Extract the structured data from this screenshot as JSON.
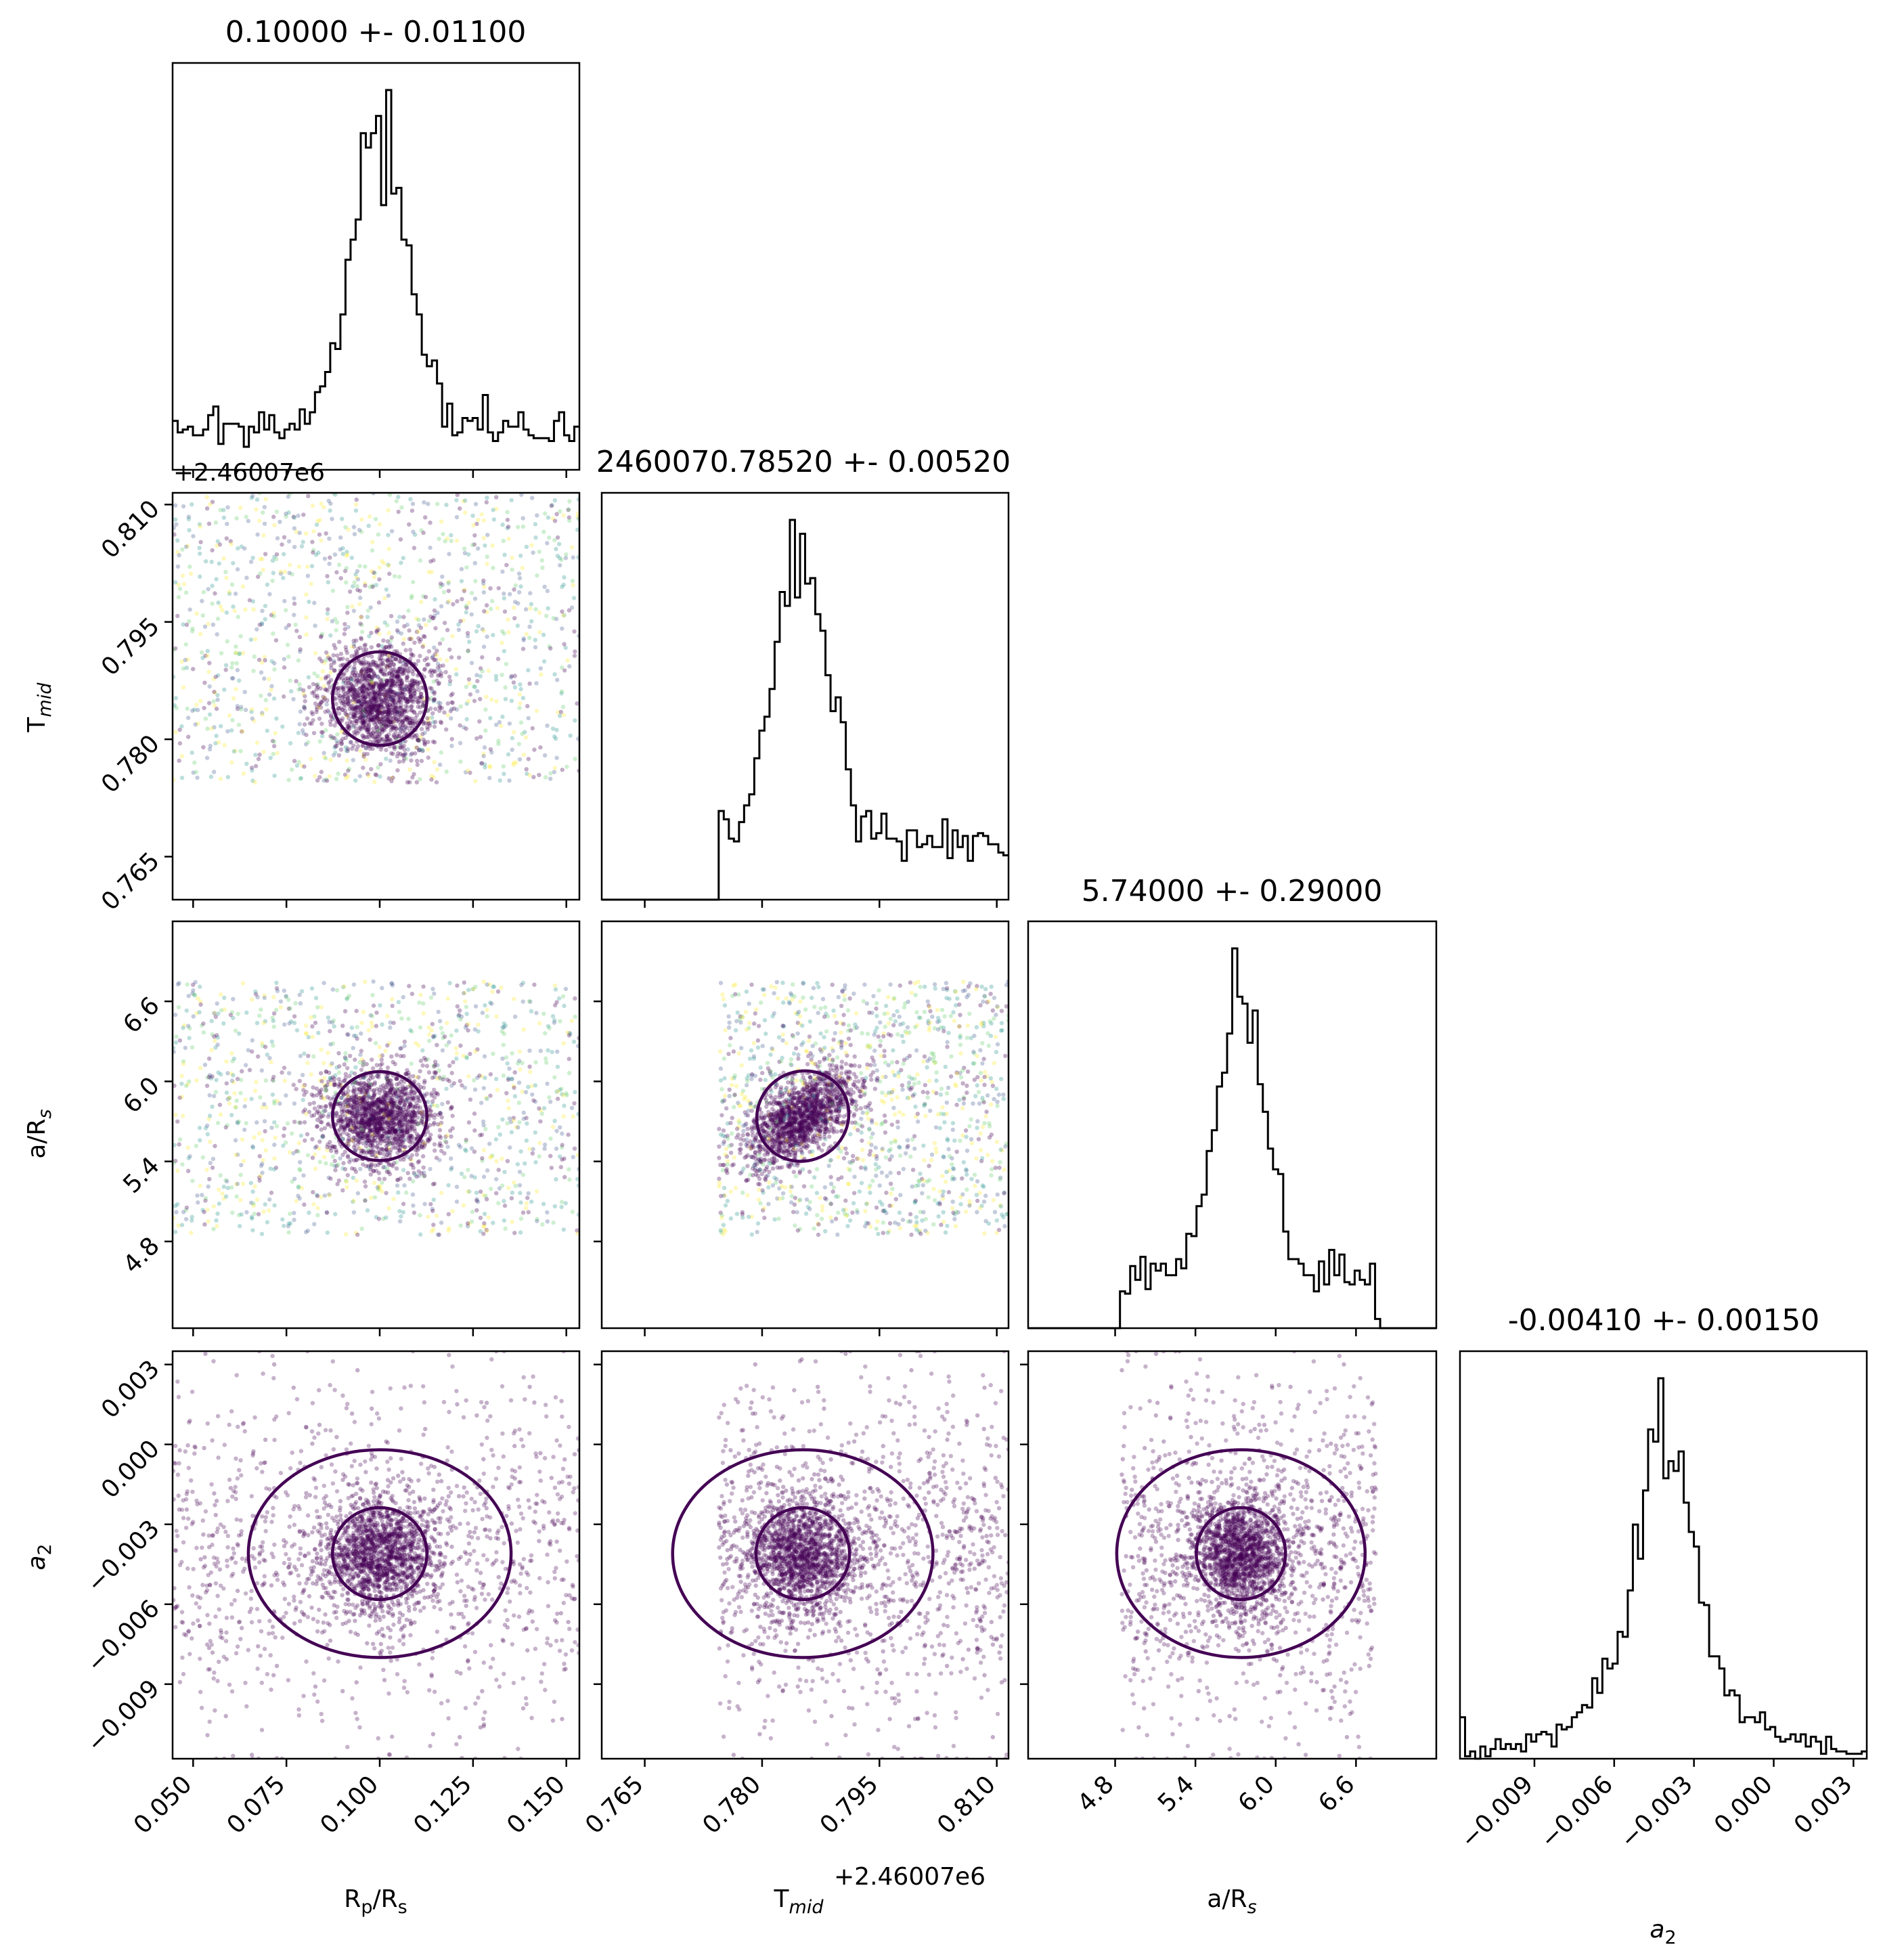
{
  "colors": {
    "frame": "#000000",
    "hist_line": "#000000",
    "contour": "#440154",
    "cmap": [
      "#440154",
      "#3b528b",
      "#21918c",
      "#5ec962",
      "#fde725"
    ]
  },
  "params": [
    {
      "key": "rp",
      "label_main": "R",
      "label_sub": "p",
      "label_tail": "/R",
      "label_tail_sub": "s",
      "sub_italic": false,
      "title": "0.10000 +- 0.01100"
    },
    {
      "key": "tmid",
      "label_main": "T",
      "label_sub": "mid",
      "label_tail": "",
      "label_tail_sub": "",
      "sub_italic": true,
      "title": "2460070.78520 +- 0.00520"
    },
    {
      "key": "ars",
      "label_main": "a/R",
      "label_sub": "s",
      "label_tail": "",
      "label_tail_sub": "",
      "sub_italic": true,
      "title": "5.74000 +- 0.29000"
    },
    {
      "key": "a2",
      "label_main": "a",
      "label_sub": "2",
      "label_tail": "",
      "label_tail_sub": "",
      "sub_italic": false,
      "italic_main": true,
      "title": "-0.00410 +- 0.00150"
    }
  ],
  "offset_texts": {
    "tmid_y": "+2.46007e6",
    "tmid_x": "+2.46007e6"
  },
  "chart_data": {
    "type": "corner",
    "parameters": [
      "Rp/Rs",
      "Tmid",
      "a/Rs",
      "a2"
    ],
    "ranges": {
      "rp": [
        0.0445,
        0.1535
      ],
      "tmid": [
        0.7595,
        0.8115
      ],
      "ars": [
        4.15,
        7.2
      ],
      "a2": [
        -0.0118,
        0.0035
      ]
    },
    "ticks": {
      "rp": [
        "0.050",
        "0.075",
        "0.100",
        "0.125",
        "0.150"
      ],
      "tmid": [
        "0.765",
        "0.780",
        "0.795",
        "0.810"
      ],
      "ars": [
        "4.8",
        "5.4",
        "6.0",
        "6.6"
      ],
      "a2": [
        "−0.009",
        "−0.006",
        "−0.003",
        "0.000",
        "0.003"
      ]
    },
    "tick_values": {
      "rp": [
        0.05,
        0.075,
        0.1,
        0.125,
        0.15
      ],
      "tmid": [
        0.765,
        0.78,
        0.795,
        0.81
      ],
      "ars": [
        4.8,
        5.4,
        6.0,
        6.6
      ],
      "a2": [
        -0.009,
        -0.006,
        -0.003,
        0.0,
        0.003
      ]
    },
    "prior_bounds": {
      "rp": [
        0.0445,
        0.1535
      ],
      "tmid": [
        0.7745,
        0.8115
      ],
      "ars": [
        4.85,
        6.75
      ],
      "a2": [
        -0.0118,
        0.0035
      ]
    },
    "posteriors": {
      "rp": {
        "mean": 0.1,
        "sigma": 0.011
      },
      "tmid": {
        "mean": 0.7852,
        "sigma": 0.0052
      },
      "ars": {
        "mean": 5.74,
        "sigma": 0.29
      },
      "a2": {
        "mean": -0.0041,
        "sigma": 0.0015
      }
    },
    "correlations": {
      "tmid_ars": 0.55
    },
    "histogram_bins": 80,
    "grid": false,
    "legend": "none"
  }
}
